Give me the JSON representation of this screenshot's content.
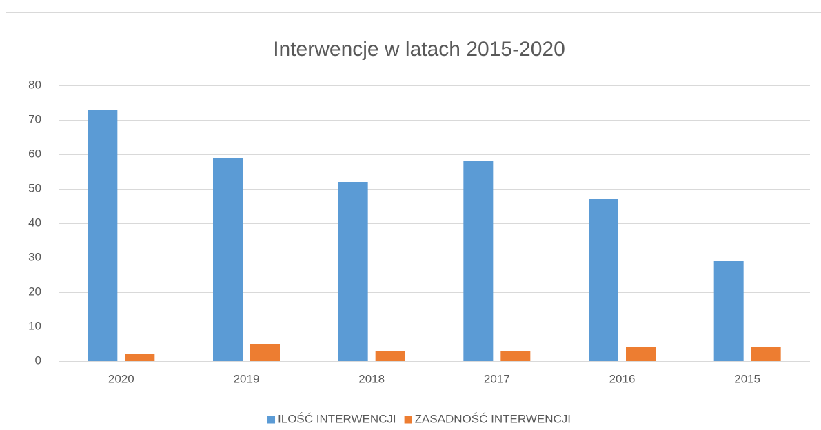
{
  "chart_data": {
    "type": "bar",
    "title": "Interwencje w latach 2015-2020",
    "categories": [
      "2020",
      "2019",
      "2018",
      "2017",
      "2016",
      "2015"
    ],
    "series": [
      {
        "name": "ILOŚĆ INTERWENCJI",
        "color": "#5b9bd5",
        "values": [
          73,
          59,
          52,
          58,
          47,
          29
        ]
      },
      {
        "name": "ZASADNOŚĆ INTERWENCJI",
        "color": "#ed7d31",
        "values": [
          2,
          5,
          3,
          3,
          4,
          4
        ]
      }
    ],
    "ylim": [
      0,
      80
    ],
    "yticks": [
      0,
      10,
      20,
      30,
      40,
      50,
      60,
      70,
      80
    ],
    "grid": true,
    "legend": "bottom"
  }
}
